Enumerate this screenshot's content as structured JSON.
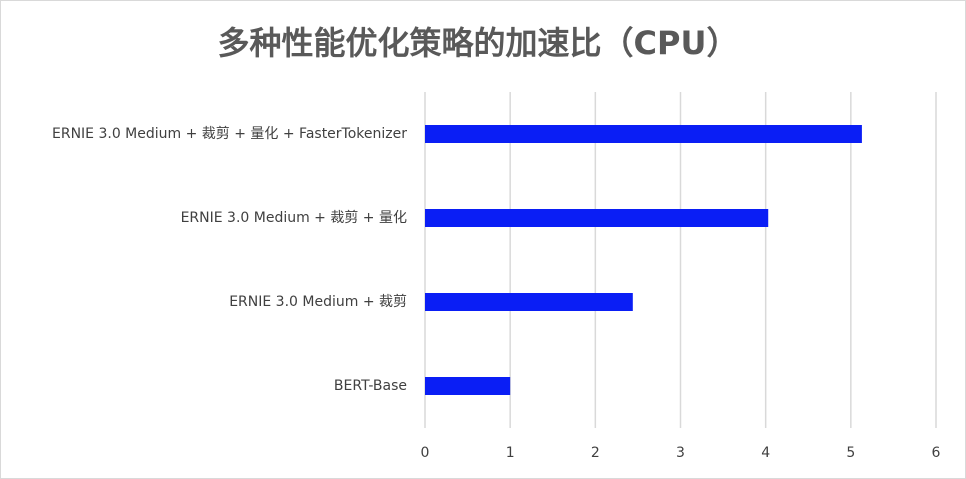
{
  "chart_data": {
    "type": "bar",
    "title": "多种性能优化策略的加速比（CPU）",
    "categories": [
      "ERNIE 3.0 Medium + 裁剪 + 量化 + FasterTokenizer",
      "ERNIE 3.0 Medium + 裁剪 + 量化",
      "ERNIE 3.0 Medium + 裁剪",
      "BERT-Base"
    ],
    "values": [
      5.13,
      4.03,
      2.44,
      1
    ],
    "color": "#0a1ef5",
    "xlim": [
      0,
      6
    ],
    "xticks": [
      0,
      1,
      2,
      3,
      4,
      5,
      6
    ],
    "grid": true
  }
}
